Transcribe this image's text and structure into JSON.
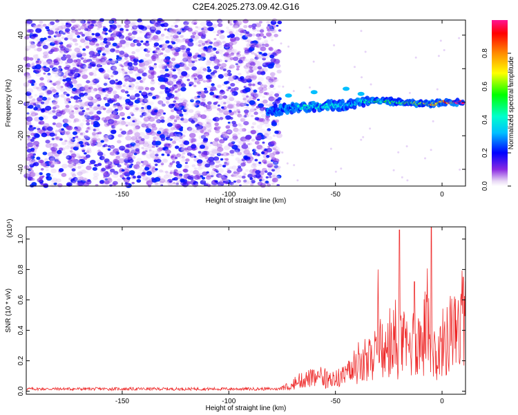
{
  "title": "C2E4.2025.273.09.42.G16",
  "chart_data": [
    {
      "type": "heatmap",
      "xlabel": "Height of straight line (km)",
      "ylabel": "Frequency (Hz)",
      "xlim": [
        -195,
        11
      ],
      "ylim": [
        -50,
        49
      ],
      "xticks": [
        -150,
        -100,
        -50,
        0
      ],
      "yticks": [
        40,
        20,
        0,
        -20,
        -40
      ],
      "colorbar": {
        "label": "Normalized spectral amplitude",
        "range": [
          0.0,
          1.0
        ],
        "ticks": [
          "0.0",
          "0.2",
          "0.4",
          "0.6",
          "0.8"
        ],
        "tick_values": [
          0.0,
          0.2,
          0.4,
          0.6,
          0.8
        ]
      },
      "noise_region": {
        "x_range": [
          -195,
          -76
        ],
        "freq_range": [
          -50,
          49
        ],
        "amplitude": [
          0.0,
          0.2
        ]
      },
      "signal_ridge": {
        "x": [
          -82,
          -75,
          -65,
          -55,
          -45,
          -38,
          -30,
          -20,
          -10,
          -4,
          0,
          5,
          10
        ],
        "frequency": [
          -6,
          -4,
          -3,
          -2,
          -2,
          0,
          1,
          0,
          -1,
          -1,
          0,
          0,
          0
        ],
        "amplitude": [
          0.2,
          0.25,
          0.35,
          0.35,
          0.3,
          0.35,
          0.45,
          0.5,
          0.55,
          0.65,
          0.75,
          0.95,
          0.9
        ]
      }
    },
    {
      "type": "line",
      "series_name": "SNR",
      "color": "#ee2a2a",
      "xlabel": "Height of straight line (km)",
      "ylabel": "SNR (10 * v/v)",
      "scale_label": "(x10⁴)",
      "xlim": [
        -195,
        11
      ],
      "ylim": [
        -0.02,
        1.08
      ],
      "xticks": [
        -150,
        -100,
        -50,
        0
      ],
      "yticks": [
        "0.0",
        "0.2",
        "0.4",
        "0.6",
        "0.8",
        "1.0"
      ],
      "ytick_values": [
        0.0,
        0.2,
        0.4,
        0.6,
        0.8,
        1.0
      ],
      "envelope_x": [
        -195,
        -76,
        -70,
        -66,
        -62,
        -55,
        -50,
        -45,
        -40,
        -35,
        -30,
        -25,
        -20,
        -15,
        -10,
        -7,
        -5,
        -3,
        0,
        5,
        10,
        11
      ],
      "envelope_y": [
        0.02,
        0.02,
        0.06,
        0.12,
        0.15,
        0.12,
        0.14,
        0.18,
        0.25,
        0.3,
        0.38,
        0.42,
        0.5,
        0.5,
        0.58,
        0.65,
        0.62,
        0.3,
        0.55,
        0.6,
        0.68,
        0.72
      ],
      "peaks": [
        {
          "x": -20,
          "y": 1.06
        },
        {
          "x": -5,
          "y": 1.08
        },
        {
          "x": -13,
          "y": 0.72
        },
        {
          "x": -30,
          "y": 0.8
        },
        {
          "x": -2,
          "y": 0.15
        },
        {
          "x": 10,
          "y": 0.75
        }
      ]
    }
  ]
}
